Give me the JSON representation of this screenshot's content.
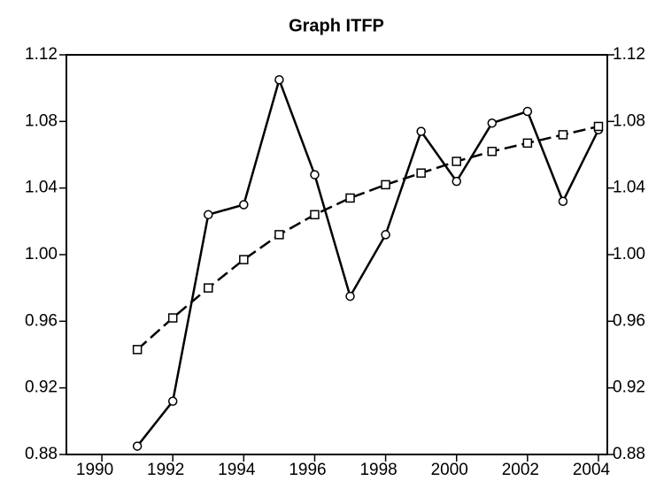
{
  "chart_data": {
    "type": "line",
    "title": "Graph ITFP",
    "x": [
      1991,
      1992,
      1993,
      1994,
      1995,
      1996,
      1997,
      1998,
      1999,
      2000,
      2001,
      2002,
      2003,
      2004
    ],
    "series": [
      {
        "color": "#000000",
        "marker": "circle",
        "dash": false,
        "values": [
          0.885,
          0.912,
          1.024,
          1.03,
          1.105,
          1.048,
          0.975,
          1.012,
          1.074,
          1.044,
          1.079,
          1.086,
          1.032,
          1.075
        ]
      },
      {
        "color": "#000000",
        "marker": "square",
        "dash": true,
        "values": [
          0.943,
          0.962,
          0.98,
          0.997,
          1.012,
          1.024,
          1.034,
          1.042,
          1.049,
          1.056,
          1.062,
          1.067,
          1.072,
          1.077
        ]
      }
    ],
    "xlim": [
      1989,
      2004.25
    ],
    "xticks": [
      1990,
      1992,
      1994,
      1996,
      1998,
      2000,
      2002,
      2004
    ],
    "ylim": [
      0.88,
      1.12
    ],
    "yticks": [
      0.88,
      0.92,
      0.96,
      {
        "value": 1,
        "label": "1.00"
      },
      1.04,
      1.08,
      1.12
    ],
    "y2lim": [
      0.88,
      1.12
    ],
    "y2ticks": [
      0.88,
      0.92,
      0.96,
      {
        "value": 1,
        "label": "1.00"
      },
      1.04,
      1.08,
      1.12
    ]
  }
}
